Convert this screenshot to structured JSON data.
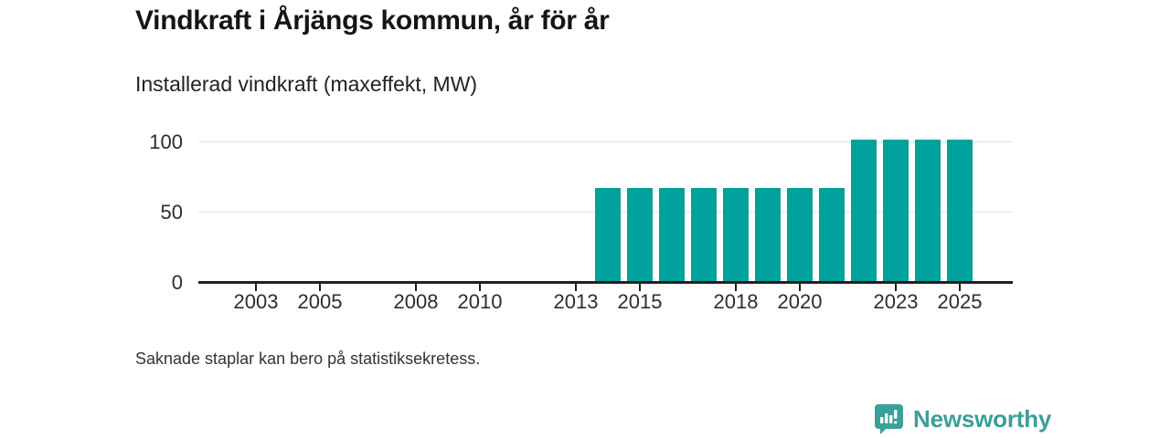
{
  "header": {
    "title": "Vindkraft i Årjängs kommun, år för år",
    "subtitle": "Installerad vindkraft (maxeffekt, MW)"
  },
  "footnote": "Saknade staplar kan bero på statistiksekretess.",
  "branding": {
    "name": "Newsworthy",
    "logo_icon": "bar-chart-speech-bubble-icon",
    "color": "#3b9f9a"
  },
  "colors": {
    "bar": "#00a29b",
    "axis": "#202020",
    "grid": "#e3e3e3",
    "tick_text": "#2d2d2d"
  },
  "chart_data": {
    "type": "bar",
    "title": "Vindkraft i Årjängs kommun, år för år",
    "ylabel": "Installerad vindkraft (maxeffekt, MW)",
    "xlabel": "",
    "unit": "MW",
    "x": [
      2014,
      2015,
      2016,
      2017,
      2018,
      2019,
      2020,
      2021,
      2022,
      2023,
      2024,
      2025
    ],
    "values": [
      67,
      67,
      67,
      67,
      67,
      67,
      67,
      67,
      101,
      101,
      101,
      101
    ],
    "missing_years_note": "2002-2013 have no bars shown",
    "xticks": [
      2003,
      2005,
      2008,
      2010,
      2013,
      2015,
      2018,
      2020,
      2023,
      2025
    ],
    "yticks": [
      0,
      50,
      100
    ],
    "ylim": [
      0,
      105
    ],
    "xlim": [
      2001.2,
      2026.7
    ],
    "grid": "horizontal",
    "legend": "none"
  }
}
